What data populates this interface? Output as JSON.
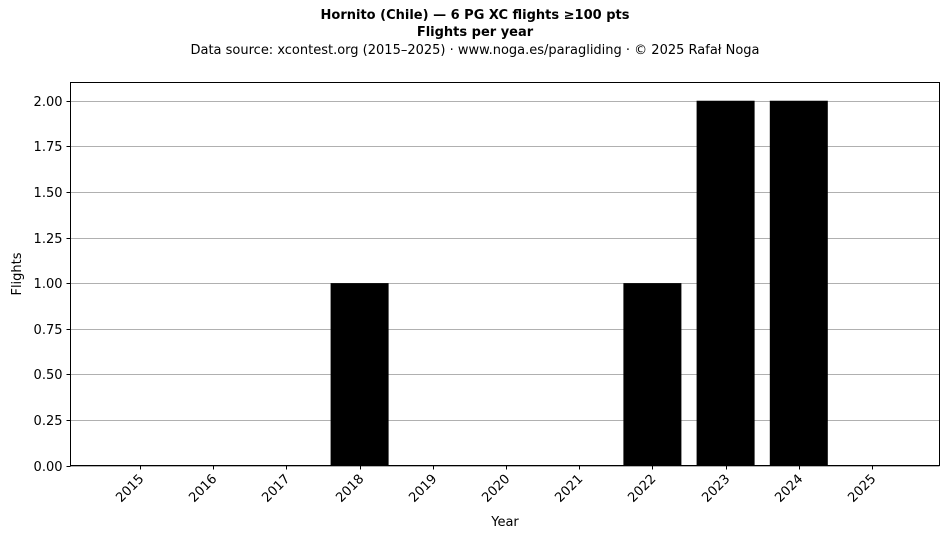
{
  "chart_data": {
    "type": "bar",
    "title": "Hornito (Chile)  —  6 PG XC flights ≥100 pts",
    "subtitle": "Flights per year",
    "source_line": "Data source: xcontest.org (2015–2025)  ·  www.noga.es/paragliding  ·  © 2025 Rafał Noga",
    "xlabel": "Year",
    "ylabel": "Flights",
    "categories": [
      "2015",
      "2016",
      "2017",
      "2018",
      "2019",
      "2020",
      "2021",
      "2022",
      "2023",
      "2024",
      "2025"
    ],
    "values": [
      0,
      0,
      0,
      1,
      0,
      0,
      0,
      1,
      2,
      2,
      0
    ],
    "ylim": [
      0,
      2.1
    ],
    "yticks": [
      "0.00",
      "0.25",
      "0.50",
      "0.75",
      "1.00",
      "1.25",
      "1.50",
      "1.75",
      "2.00"
    ],
    "grid": "y",
    "bar_color": "#000000",
    "grid_color": "#b0b0b0"
  }
}
